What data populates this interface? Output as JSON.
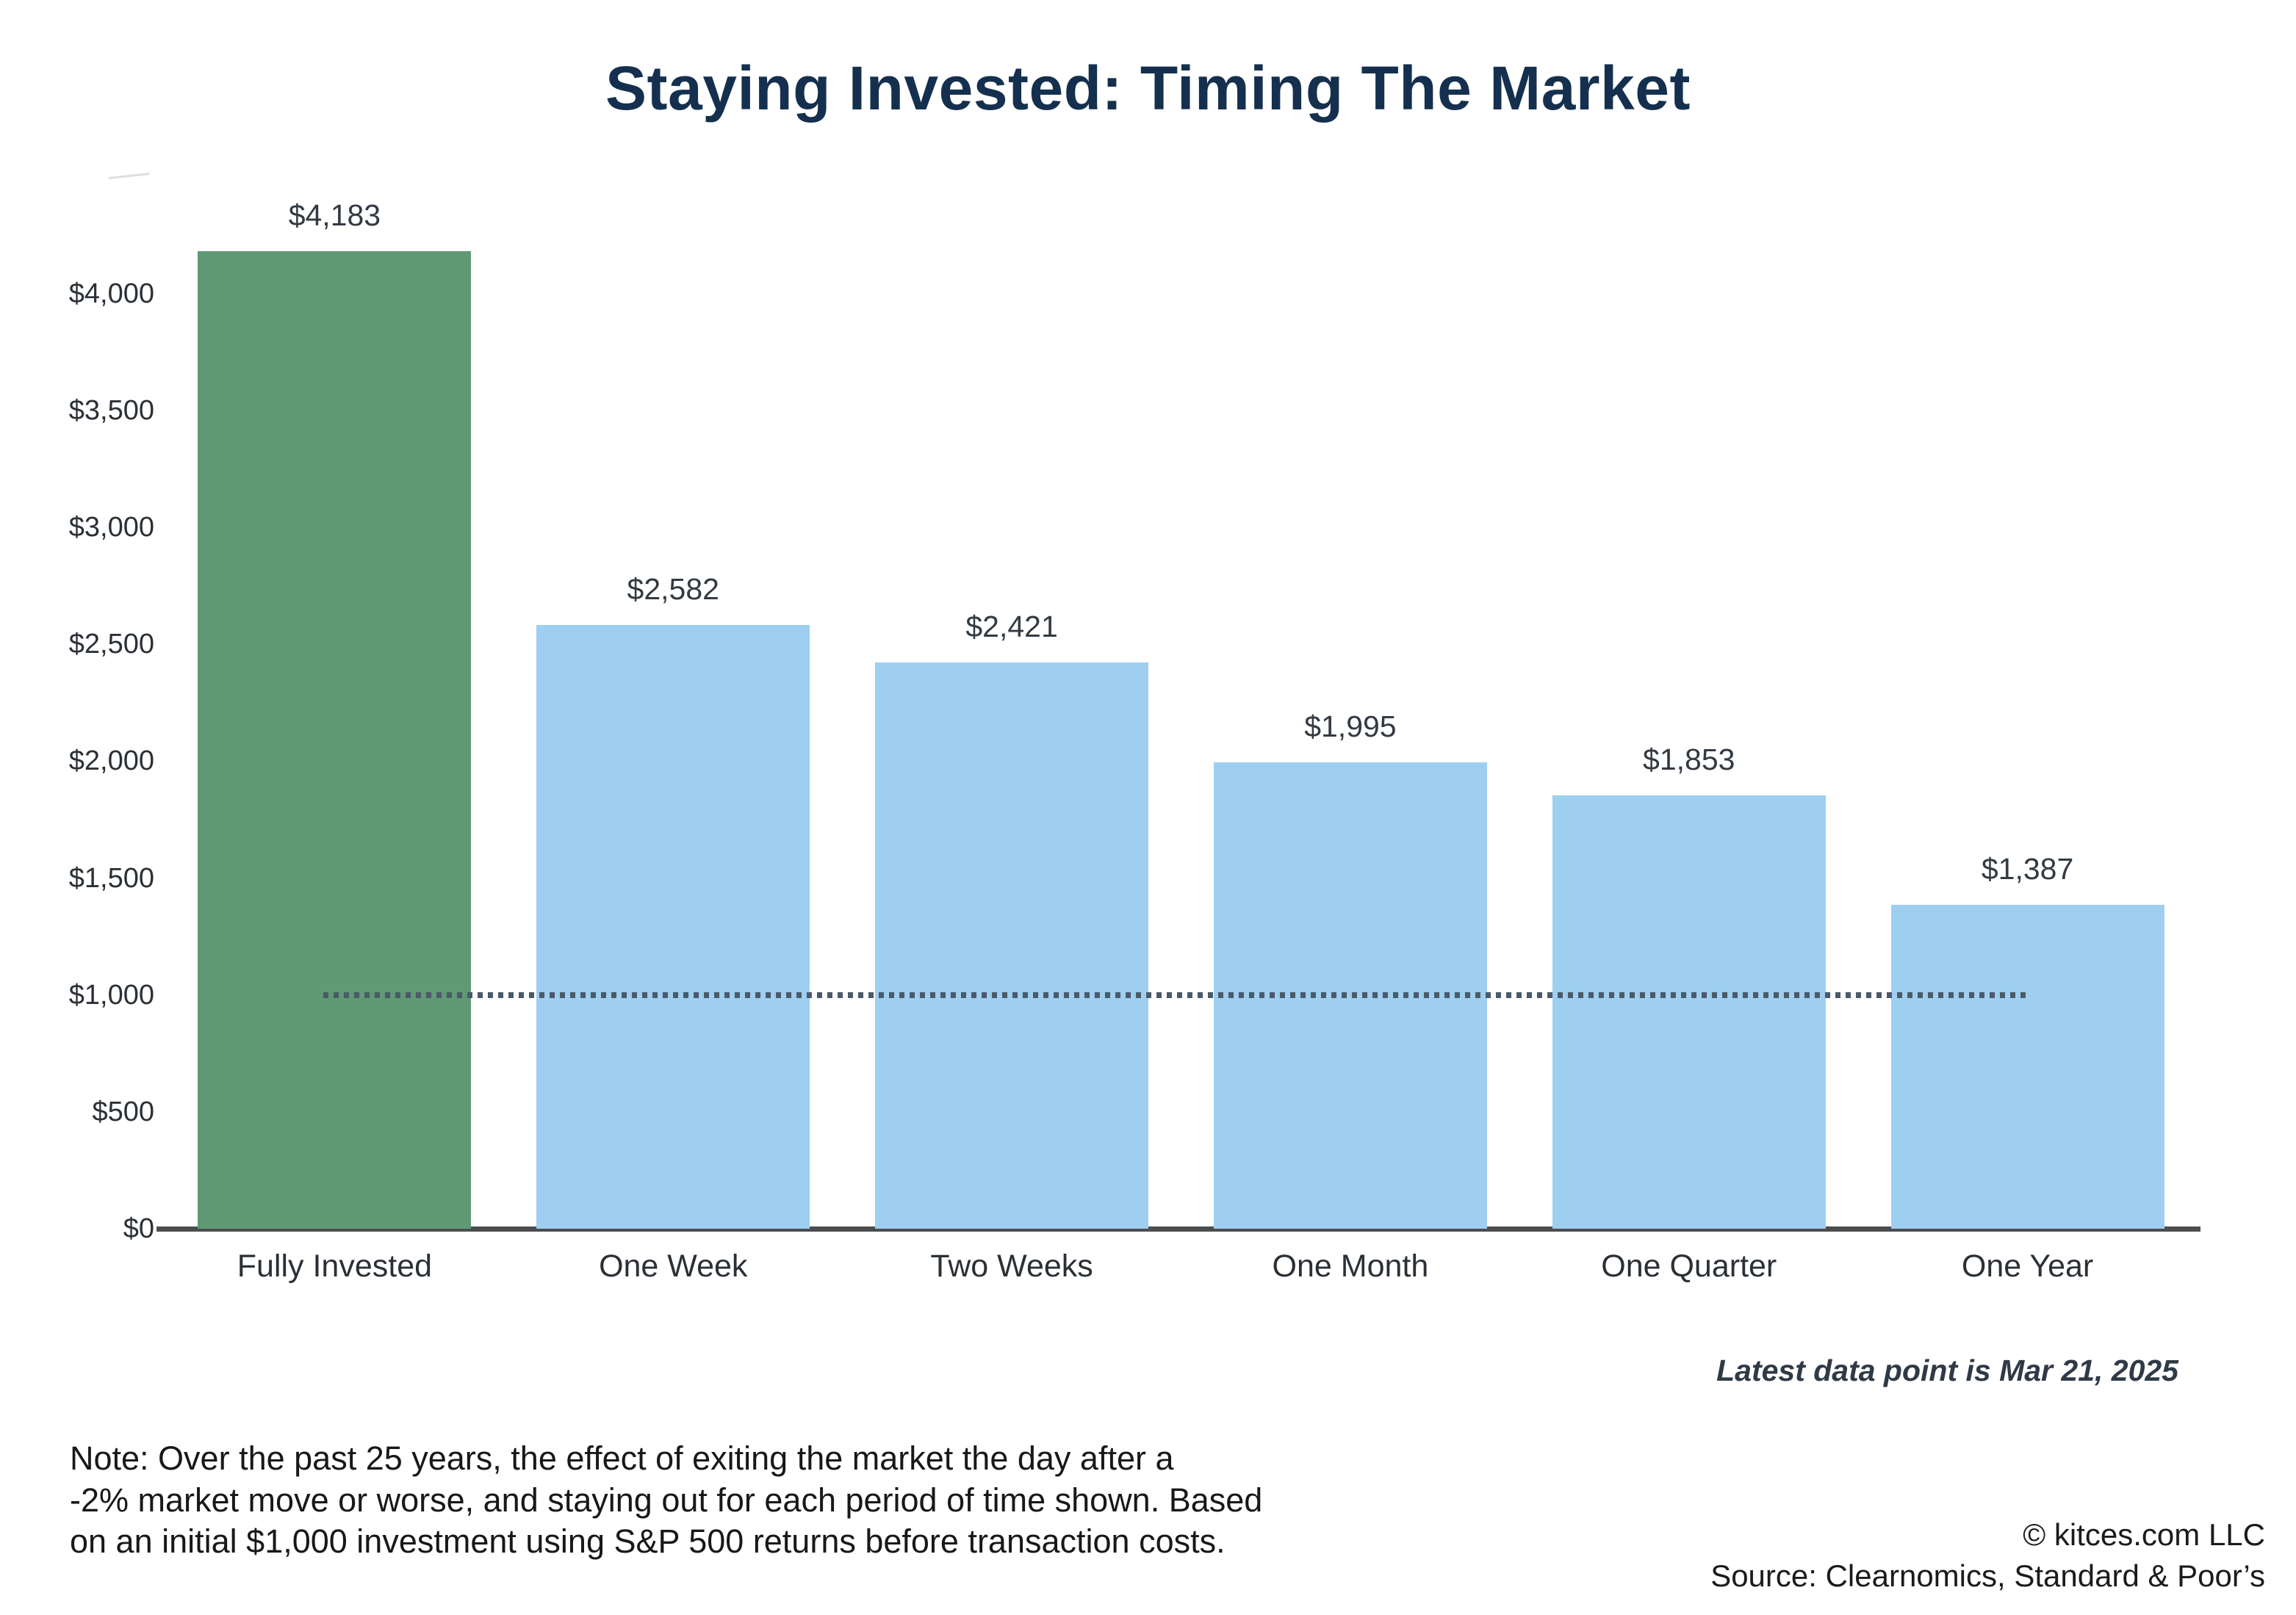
{
  "chart_data": {
    "type": "bar",
    "title": "Staying Invested: Timing The Market",
    "categories": [
      "Fully Invested",
      "One Week",
      "Two Weeks",
      "One Month",
      "One Quarter",
      "One Year"
    ],
    "values": [
      4183,
      2582,
      2421,
      1995,
      1853,
      1387
    ],
    "value_labels": [
      "$4,183",
      "$2,582",
      "$2,421",
      "$1,995",
      "$1,853",
      "$1,387"
    ],
    "xlabel": "",
    "ylabel": "",
    "ylim": [
      0,
      4400
    ],
    "grid": false,
    "legend": false,
    "y_ticks": [
      {
        "value": 0,
        "label": "$0"
      },
      {
        "value": 500,
        "label": "$500"
      },
      {
        "value": 1000,
        "label": "$1,000"
      },
      {
        "value": 1500,
        "label": "$1,500"
      },
      {
        "value": 2000,
        "label": "$2,000"
      },
      {
        "value": 2500,
        "label": "$2,500"
      },
      {
        "value": 3000,
        "label": "$3,000"
      },
      {
        "value": 3500,
        "label": "$3,500"
      },
      {
        "value": 4000,
        "label": "$4,000"
      }
    ],
    "reference_line": {
      "value": 1000,
      "style": "dotted",
      "color": "#4b5a69"
    },
    "highlight_color": "#609A74",
    "bar_color": "#9ECFF0",
    "title_color": "#15304E"
  },
  "footer": {
    "latest_data_note": "Latest data point is Mar 21, 2025",
    "note": "Note: Over the past 25 years, the effect of exiting the market the day after a\n-2% market move or worse, and staying out for each period of time shown. Based\non an initial $1,000 investment using S&P 500 returns before transaction costs.",
    "copyright": "© kitces.com LLC",
    "source": "Source: Clearnomics, Standard & Poor’s"
  }
}
